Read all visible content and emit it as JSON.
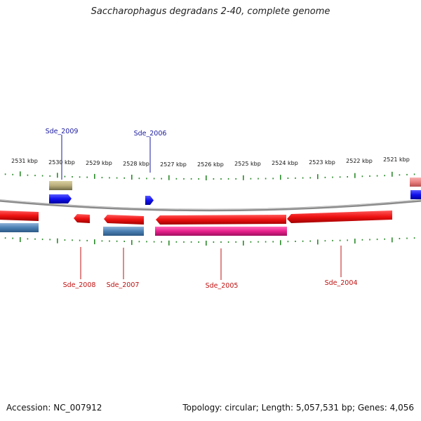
{
  "title": "Saccharophagus degradans 2-40, complete genome",
  "footer": {
    "accession": "Accession: NC_007912",
    "summary": "Topology: circular; Length: 5,057,531 bp; Genes: 4,056"
  },
  "ruler": {
    "labels": [
      "2531 kbp",
      "2530 kbp",
      "2529 kbp",
      "2528 kbp",
      "2527 kbp",
      "2526 kbp",
      "2525 kbp",
      "2524 kbp",
      "2523 kbp",
      "2522 kbp",
      "2521 kbp"
    ]
  },
  "colors": {
    "backbone": "#8a8a8a",
    "ticks": "#2a8a2a",
    "forward_cds": "#1010ee",
    "reverse_cds": "#ee1111",
    "forward_label": "#1a1aa0",
    "reverse_label": "#c01010",
    "pink_gene": "#e8208c",
    "steel_gene": "#4a7fb3",
    "khaki_gene": "#b9ad7a",
    "salmon_gene": "#e88080"
  },
  "genes": {
    "forward": [
      "Sde_2009",
      "Sde_2006"
    ],
    "reverse": [
      "Sde_2008",
      "Sde_2007",
      "Sde_2005",
      "Sde_2004"
    ]
  }
}
